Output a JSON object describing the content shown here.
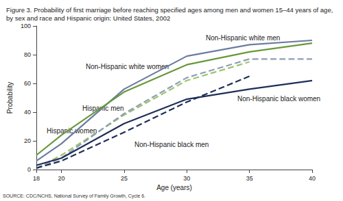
{
  "chart_data": {
    "type": "line",
    "title": "Figure 3. Probability of first marriage before reaching specified ages among men and women 15–44 years of age, by sex and race and Hispanic origin: United States, 2002",
    "source": "SOURCE: CDC/NCHS, National Survey of Family Growth, Cycle 6.",
    "x_label": "Age (years)",
    "y_label": "Probability",
    "x": [
      18,
      20,
      25,
      30,
      35,
      40
    ],
    "xlim": [
      18,
      40
    ],
    "xticks": [
      18,
      20,
      25,
      30,
      35,
      40
    ],
    "ylim": [
      0,
      100
    ],
    "yticks": [
      0,
      20,
      40,
      60,
      80,
      100
    ],
    "grid": false,
    "series": [
      {
        "name": "Non-Hispanic white men",
        "color": "#6b7c9e",
        "line_style": "solid",
        "values": [
          6,
          18,
          56,
          79,
          87,
          90
        ]
      },
      {
        "name": "Non-Hispanic white women",
        "color": "#67983a",
        "line_style": "solid",
        "values": [
          10,
          24,
          54,
          73,
          82,
          88
        ]
      },
      {
        "name": "Hispanic men",
        "color": "#9cc46a",
        "line_style": "dashed",
        "values": [
          1,
          10,
          38,
          62,
          75,
          null
        ]
      },
      {
        "name": "Hispanic women",
        "color": "#8e9db6",
        "line_style": "dashed",
        "values": [
          1,
          8,
          39,
          64,
          77,
          77
        ]
      },
      {
        "name": "Non-Hispanic black women",
        "color": "#1e2e58",
        "line_style": "solid",
        "values": [
          3,
          8,
          32,
          49,
          56,
          62
        ]
      },
      {
        "name": "Non-Hispanic black men",
        "color": "#1e2e58",
        "line_style": "dashed",
        "values": [
          1,
          6,
          26,
          47,
          65,
          null
        ]
      }
    ]
  }
}
